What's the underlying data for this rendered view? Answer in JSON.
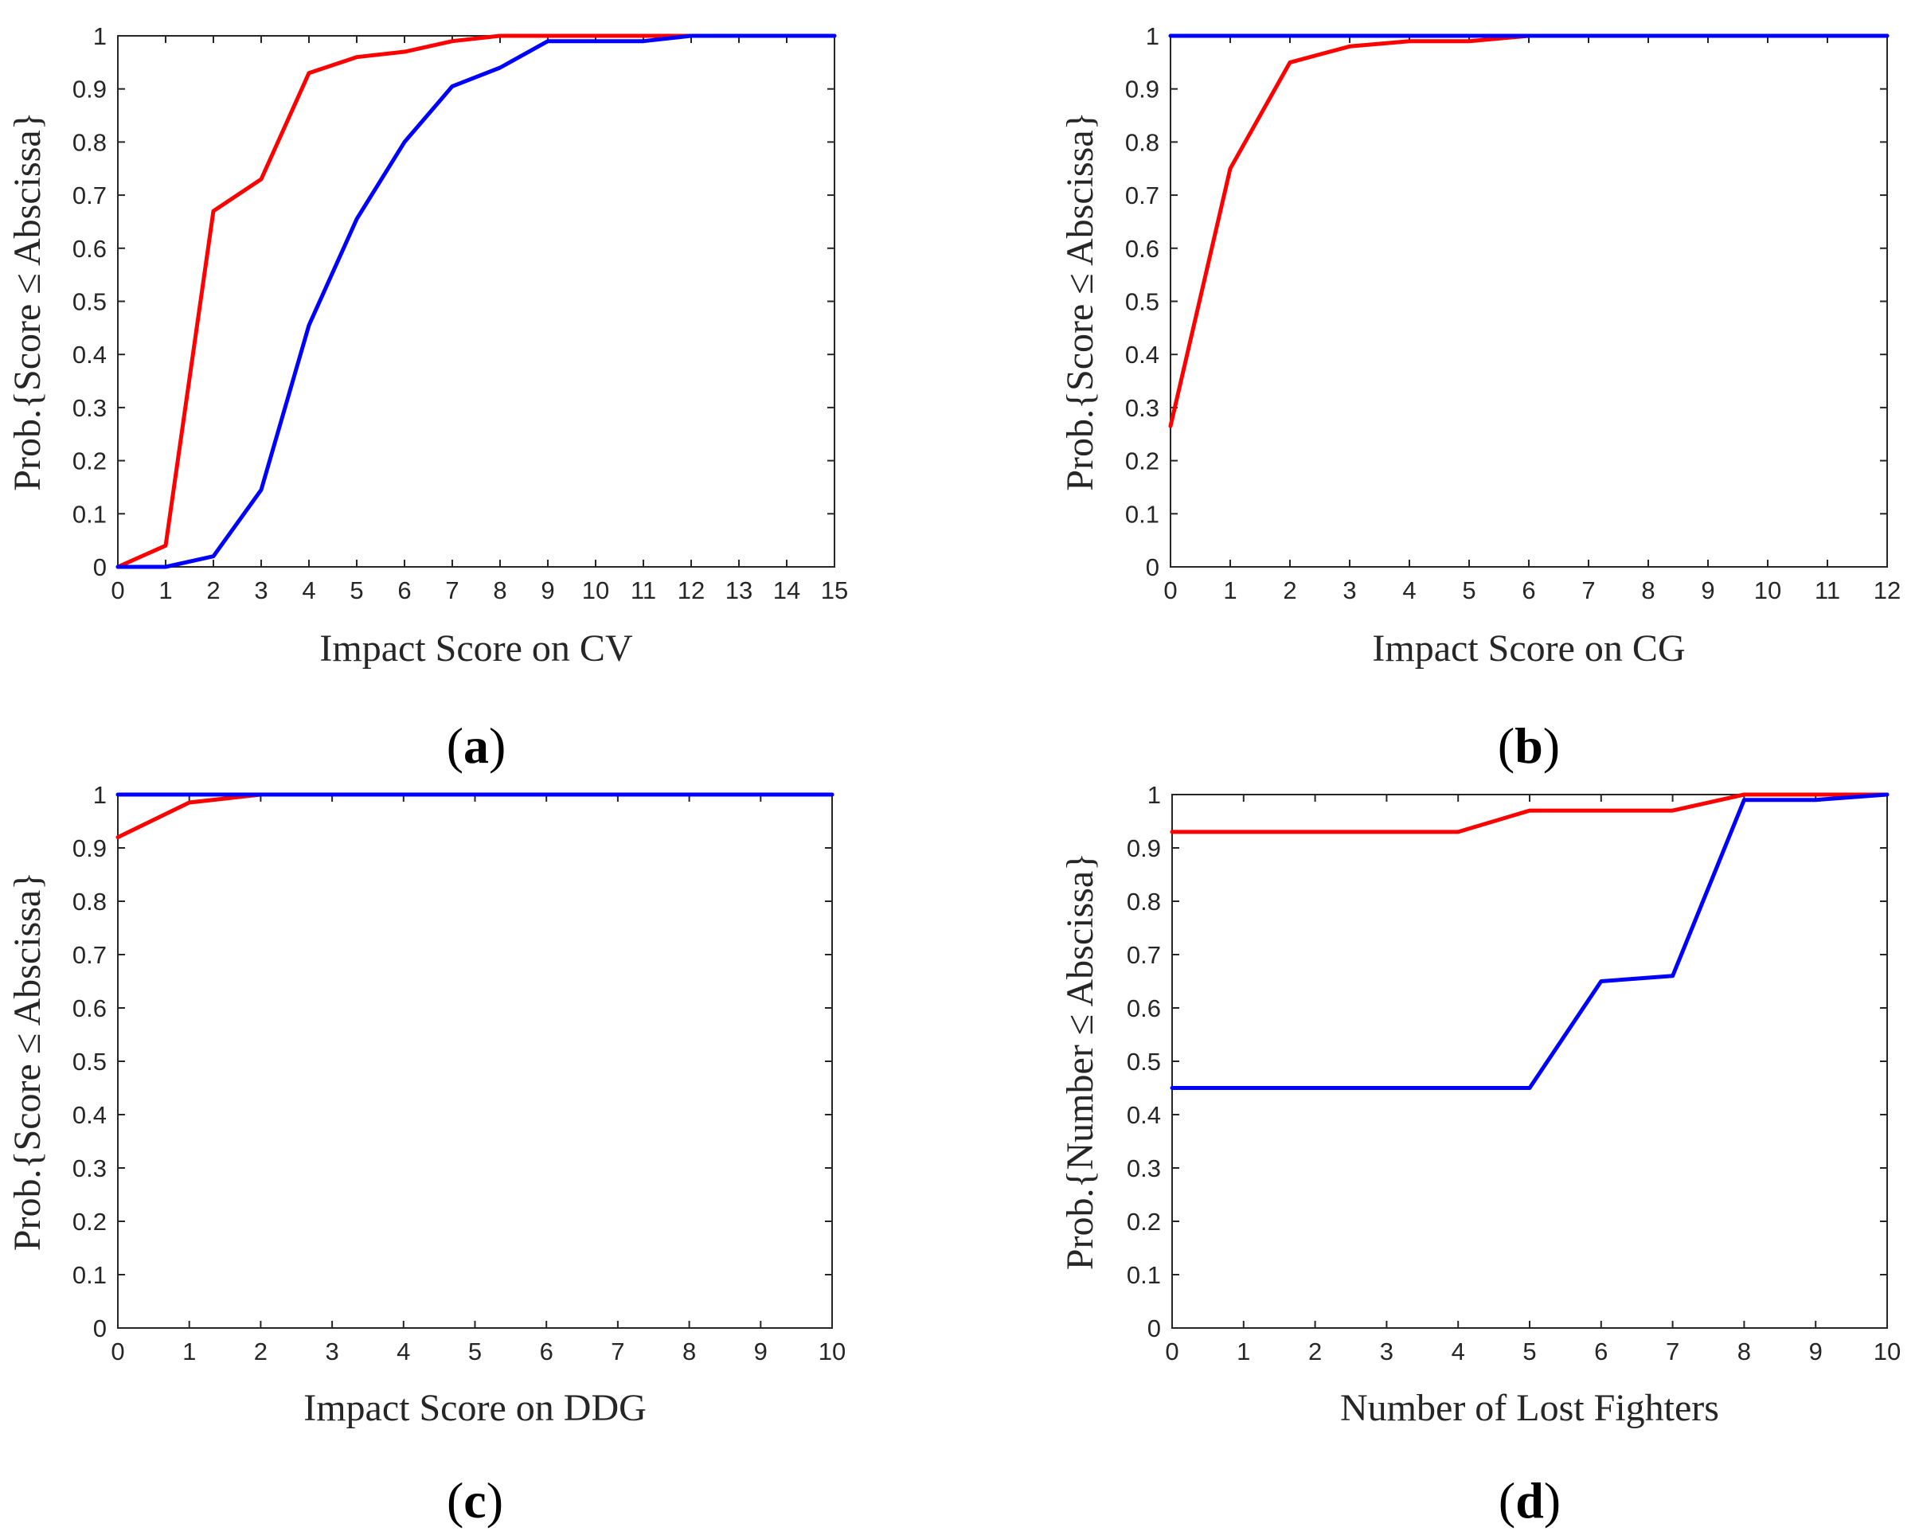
{
  "chart_data": [
    {
      "type": "line",
      "panel_label": "(a)",
      "panel_letter": "a",
      "xlabel": "Impact Score on CV",
      "ylabel": "Prob.{Score ≤ Abscissa}",
      "xlim": [
        0,
        15
      ],
      "ylim": [
        0,
        1
      ],
      "xticks": [
        0,
        1,
        2,
        3,
        4,
        5,
        6,
        7,
        8,
        9,
        10,
        11,
        12,
        13,
        14,
        15
      ],
      "yticks": [
        0,
        0.1,
        0.2,
        0.3,
        0.4,
        0.5,
        0.6,
        0.7,
        0.8,
        0.9,
        1
      ],
      "series": [
        {
          "name": "red",
          "color": "#ff0000",
          "x": [
            0,
            1,
            2,
            3,
            4,
            5,
            6,
            7,
            8,
            9,
            10,
            11,
            12,
            13,
            14,
            15
          ],
          "y": [
            0,
            0.04,
            0.67,
            0.73,
            0.93,
            0.96,
            0.97,
            0.99,
            1,
            1,
            1,
            1,
            1,
            1,
            1,
            1
          ]
        },
        {
          "name": "blue",
          "color": "#0000ff",
          "x": [
            0,
            1,
            2,
            3,
            4,
            5,
            6,
            7,
            8,
            9,
            10,
            11,
            12,
            13,
            14,
            15
          ],
          "y": [
            0,
            0,
            0.02,
            0.145,
            0.455,
            0.655,
            0.8,
            0.905,
            0.94,
            0.99,
            0.99,
            0.99,
            1,
            1,
            1,
            1
          ]
        }
      ]
    },
    {
      "type": "line",
      "panel_label": "(b)",
      "panel_letter": "b",
      "xlabel": "Impact Score on CG",
      "ylabel": "Prob.{Score ≤ Abscissa}",
      "xlim": [
        0,
        12
      ],
      "ylim": [
        0,
        1
      ],
      "xticks": [
        0,
        1,
        2,
        3,
        4,
        5,
        6,
        7,
        8,
        9,
        10,
        11,
        12
      ],
      "yticks": [
        0,
        0.1,
        0.2,
        0.3,
        0.4,
        0.5,
        0.6,
        0.7,
        0.8,
        0.9,
        1
      ],
      "series": [
        {
          "name": "red",
          "color": "#ff0000",
          "x": [
            0,
            1,
            2,
            3,
            4,
            5,
            6,
            7,
            8,
            9,
            10,
            11,
            12
          ],
          "y": [
            0.265,
            0.75,
            0.95,
            0.98,
            0.99,
            0.99,
            1,
            1,
            1,
            1,
            1,
            1,
            1
          ]
        },
        {
          "name": "blue",
          "color": "#0000ff",
          "x": [
            0,
            1,
            2,
            3,
            4,
            5,
            6,
            7,
            8,
            9,
            10,
            11,
            12
          ],
          "y": [
            1,
            1,
            1,
            1,
            1,
            1,
            1,
            1,
            1,
            1,
            1,
            1,
            1
          ]
        }
      ]
    },
    {
      "type": "line",
      "panel_label": "(c)",
      "panel_letter": "c",
      "xlabel": "Impact Score on DDG",
      "ylabel": "Prob.{Score ≤ Abscissa}",
      "xlim": [
        0,
        10
      ],
      "ylim": [
        0,
        1
      ],
      "xticks": [
        0,
        1,
        2,
        3,
        4,
        5,
        6,
        7,
        8,
        9,
        10
      ],
      "yticks": [
        0,
        0.1,
        0.2,
        0.3,
        0.4,
        0.5,
        0.6,
        0.7,
        0.8,
        0.9,
        1
      ],
      "series": [
        {
          "name": "red",
          "color": "#ff0000",
          "x": [
            0,
            1,
            2,
            3,
            4,
            5,
            6,
            7,
            8,
            9,
            10
          ],
          "y": [
            0.92,
            0.985,
            1,
            1,
            1,
            1,
            1,
            1,
            1,
            1,
            1
          ]
        },
        {
          "name": "blue",
          "color": "#0000ff",
          "x": [
            0,
            1,
            2,
            3,
            4,
            5,
            6,
            7,
            8,
            9,
            10
          ],
          "y": [
            1,
            1,
            1,
            1,
            1,
            1,
            1,
            1,
            1,
            1,
            1
          ]
        }
      ]
    },
    {
      "type": "line",
      "panel_label": "(d)",
      "panel_letter": "d",
      "xlabel": "Number of Lost Fighters",
      "ylabel": "Prob.{Number ≤ Abscissa}",
      "xlim": [
        0,
        10
      ],
      "ylim": [
        0,
        1
      ],
      "xticks": [
        0,
        1,
        2,
        3,
        4,
        5,
        6,
        7,
        8,
        9,
        10
      ],
      "yticks": [
        0,
        0.1,
        0.2,
        0.3,
        0.4,
        0.5,
        0.6,
        0.7,
        0.8,
        0.9,
        1
      ],
      "series": [
        {
          "name": "red",
          "color": "#ff0000",
          "x": [
            0,
            1,
            2,
            3,
            4,
            5,
            6,
            7,
            8,
            9,
            10
          ],
          "y": [
            0.93,
            0.93,
            0.93,
            0.93,
            0.93,
            0.97,
            0.97,
            0.97,
            1,
            1,
            1
          ]
        },
        {
          "name": "blue",
          "color": "#0000ff",
          "x": [
            0,
            1,
            2,
            3,
            4,
            5,
            6,
            7,
            8,
            9,
            10
          ],
          "y": [
            0.45,
            0.45,
            0.45,
            0.45,
            0.45,
            0.45,
            0.65,
            0.66,
            0.99,
            0.99,
            1
          ]
        }
      ]
    }
  ]
}
